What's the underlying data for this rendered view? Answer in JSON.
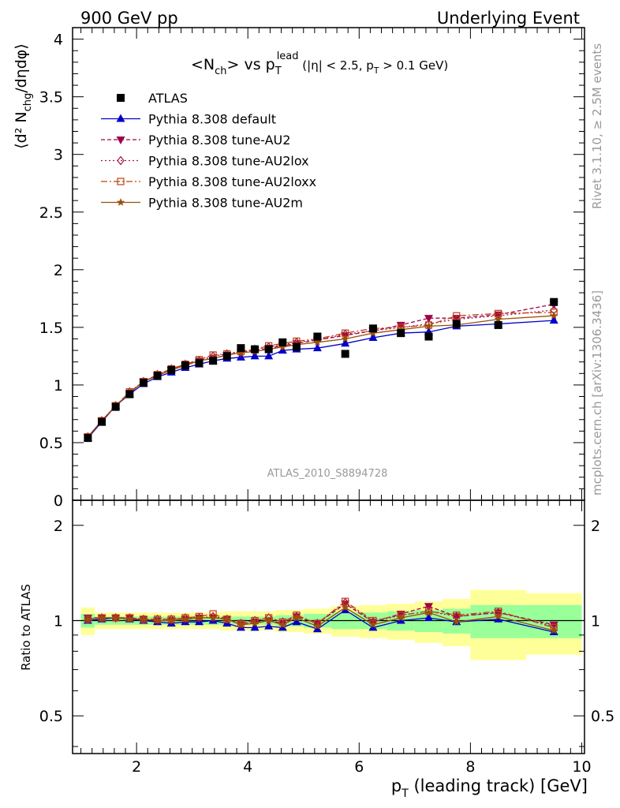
{
  "header": {
    "left": "900 GeV pp",
    "right": "Underlying Event"
  },
  "side_text": {
    "rivet": "Rivet 3.1.10, ≥ 2.5M events",
    "mcplots": "mcplots.cern.ch [arXiv:1306.3436]"
  },
  "watermark": "ATLAS_2010_S8894728",
  "title": {
    "main": "<N",
    "main_sub": "ch",
    "mid": "> vs p",
    "mid_sub": "T",
    "mid_sup": "lead",
    "cuts_a": " (|η| < 2.5, p",
    "cuts_sub": "T",
    "cuts_b": " > 0.1 GeV)"
  },
  "axis_labels": {
    "y_top": "⟨d² N",
    "y_top_sub": "chg",
    "y_top_tail": "/dηdφ⟩",
    "y_bottom": "Ratio to ATLAS",
    "x": "p",
    "x_sub": "T",
    "x_tail": " (leading track) [GeV]"
  },
  "colors": {
    "data": "#000000",
    "default": "#0000cc",
    "au2": "#a0004a",
    "au2lox": "#a01850",
    "au2loxx": "#c04010",
    "au2m": "#9a5008",
    "band_inner": "#99ff99",
    "band_outer": "#ffff99"
  },
  "chart_data": [
    {
      "type": "scatter",
      "xlim": [
        0.85,
        10.05
      ],
      "ylim": [
        0,
        4.1
      ],
      "x_ticks": [
        "2",
        "4",
        "6",
        "8",
        "10"
      ],
      "y_ticks": [
        "0",
        "0.5",
        "1",
        "1.5",
        "2",
        "2.5",
        "3",
        "3.5",
        "4"
      ],
      "x": [
        1.125,
        1.375,
        1.625,
        1.875,
        2.125,
        2.375,
        2.625,
        2.875,
        3.125,
        3.375,
        3.625,
        3.875,
        4.125,
        4.375,
        4.625,
        4.875,
        5.25,
        5.75,
        6.25,
        6.75,
        7.25,
        7.75,
        8.5,
        9.5
      ],
      "series": [
        {
          "name": "ATLAS",
          "key": "data",
          "marker": "square",
          "dash": "",
          "values": [
            0.54,
            0.68,
            0.81,
            0.92,
            1.02,
            1.08,
            1.13,
            1.17,
            1.19,
            1.21,
            1.25,
            1.32,
            1.31,
            1.31,
            1.37,
            1.33,
            1.42,
            1.27,
            1.49,
            1.45,
            1.42,
            1.53,
            1.52,
            1.72
          ]
        },
        {
          "name": "Pythia 8.308 default",
          "key": "default",
          "marker": "triangle-up",
          "dash": "",
          "values": [
            0.54,
            0.68,
            0.82,
            0.92,
            1.01,
            1.07,
            1.11,
            1.15,
            1.18,
            1.21,
            1.23,
            1.24,
            1.25,
            1.25,
            1.3,
            1.31,
            1.32,
            1.36,
            1.41,
            1.45,
            1.46,
            1.51,
            1.53,
            1.56
          ]
        },
        {
          "name": "Pythia 8.308 tune-AU2",
          "key": "au2",
          "marker": "triangle-down",
          "dash": "5,3",
          "values": [
            0.55,
            0.69,
            0.82,
            0.93,
            1.03,
            1.08,
            1.13,
            1.17,
            1.21,
            1.23,
            1.26,
            1.28,
            1.3,
            1.32,
            1.34,
            1.36,
            1.39,
            1.43,
            1.47,
            1.52,
            1.58,
            1.58,
            1.61,
            1.7
          ]
        },
        {
          "name": "Pythia 8.308 tune-AU2lox",
          "key": "au2lox",
          "marker": "diamond",
          "dash": "2,3",
          "values": [
            0.55,
            0.69,
            0.82,
            0.94,
            1.03,
            1.09,
            1.14,
            1.18,
            1.21,
            1.25,
            1.27,
            1.29,
            1.31,
            1.33,
            1.35,
            1.37,
            1.39,
            1.44,
            1.47,
            1.5,
            1.53,
            1.57,
            1.6,
            1.65
          ]
        },
        {
          "name": "Pythia 8.308 tune-AU2loxx",
          "key": "au2loxx",
          "marker": "square-open",
          "dash": "8,3,2,3",
          "values": [
            0.55,
            0.69,
            0.82,
            0.94,
            1.03,
            1.09,
            1.14,
            1.18,
            1.22,
            1.26,
            1.27,
            1.29,
            1.31,
            1.34,
            1.36,
            1.38,
            1.4,
            1.45,
            1.49,
            1.5,
            1.52,
            1.6,
            1.62,
            1.63
          ]
        },
        {
          "name": "Pythia 8.308 tune-AU2m",
          "key": "au2m",
          "marker": "star",
          "dash": "",
          "values": [
            0.55,
            0.69,
            0.82,
            0.93,
            1.03,
            1.08,
            1.13,
            1.17,
            1.21,
            1.23,
            1.26,
            1.28,
            1.29,
            1.31,
            1.33,
            1.35,
            1.37,
            1.4,
            1.45,
            1.48,
            1.51,
            1.52,
            1.57,
            1.6
          ]
        }
      ]
    },
    {
      "type": "scatter",
      "ylabel": "Ratio to ATLAS",
      "xlim": [
        0.85,
        10.05
      ],
      "ylim": [
        0.38,
        2.4
      ],
      "log_y": true,
      "y_ticks": [
        "0.5",
        "1",
        "2"
      ],
      "x_edges": [
        1.0,
        1.25,
        1.5,
        1.75,
        2.0,
        2.25,
        2.5,
        2.75,
        3.0,
        3.25,
        3.5,
        3.75,
        4.0,
        4.25,
        4.5,
        4.75,
        5.0,
        5.5,
        6.0,
        6.5,
        7.0,
        7.5,
        8.0,
        9.0,
        10.0
      ],
      "band_inner": [
        0.05,
        0.03,
        0.03,
        0.03,
        0.03,
        0.03,
        0.03,
        0.03,
        0.03,
        0.03,
        0.03,
        0.03,
        0.03,
        0.03,
        0.04,
        0.04,
        0.05,
        0.06,
        0.06,
        0.07,
        0.08,
        0.09,
        0.12,
        0.12
      ],
      "band_outer": [
        0.1,
        0.06,
        0.06,
        0.06,
        0.06,
        0.06,
        0.06,
        0.06,
        0.06,
        0.06,
        0.07,
        0.07,
        0.07,
        0.07,
        0.08,
        0.08,
        0.09,
        0.11,
        0.12,
        0.13,
        0.15,
        0.17,
        0.25,
        0.22
      ],
      "series": [
        {
          "key": "default",
          "values": [
            1.0,
            1.01,
            1.02,
            1.01,
            1.0,
            0.99,
            0.98,
            0.99,
            0.99,
            1.0,
            0.98,
            0.95,
            0.95,
            0.96,
            0.95,
            0.99,
            0.94,
            1.08,
            0.95,
            1.0,
            1.02,
            0.99,
            1.01,
            0.92
          ]
        },
        {
          "key": "au2",
          "values": [
            1.02,
            1.02,
            1.02,
            1.02,
            1.01,
            1.0,
            1.0,
            1.01,
            1.02,
            1.02,
            1.01,
            0.97,
            0.99,
            1.0,
            0.98,
            1.03,
            0.98,
            1.13,
            0.99,
            1.05,
            1.11,
            1.03,
            1.06,
            0.97
          ]
        },
        {
          "key": "au2lox",
          "values": [
            1.01,
            1.02,
            1.02,
            1.02,
            1.01,
            1.01,
            1.01,
            1.02,
            1.02,
            1.03,
            1.01,
            0.98,
            1.0,
            1.02,
            0.99,
            1.03,
            0.98,
            1.14,
            0.99,
            1.04,
            1.07,
            1.03,
            1.06,
            0.96
          ]
        },
        {
          "key": "au2loxx",
          "values": [
            1.01,
            1.02,
            1.02,
            1.02,
            1.01,
            1.01,
            1.01,
            1.02,
            1.03,
            1.05,
            1.01,
            0.98,
            1.0,
            1.02,
            0.99,
            1.04,
            0.98,
            1.15,
            1.0,
            1.04,
            1.07,
            1.04,
            1.07,
            0.95
          ]
        },
        {
          "key": "au2m",
          "values": [
            1.01,
            1.02,
            1.02,
            1.01,
            1.01,
            1.0,
            1.0,
            1.01,
            1.02,
            1.02,
            1.01,
            0.97,
            0.98,
            1.0,
            0.97,
            1.02,
            0.96,
            1.1,
            0.97,
            1.02,
            1.06,
            0.99,
            1.03,
            0.93
          ]
        }
      ]
    }
  ]
}
